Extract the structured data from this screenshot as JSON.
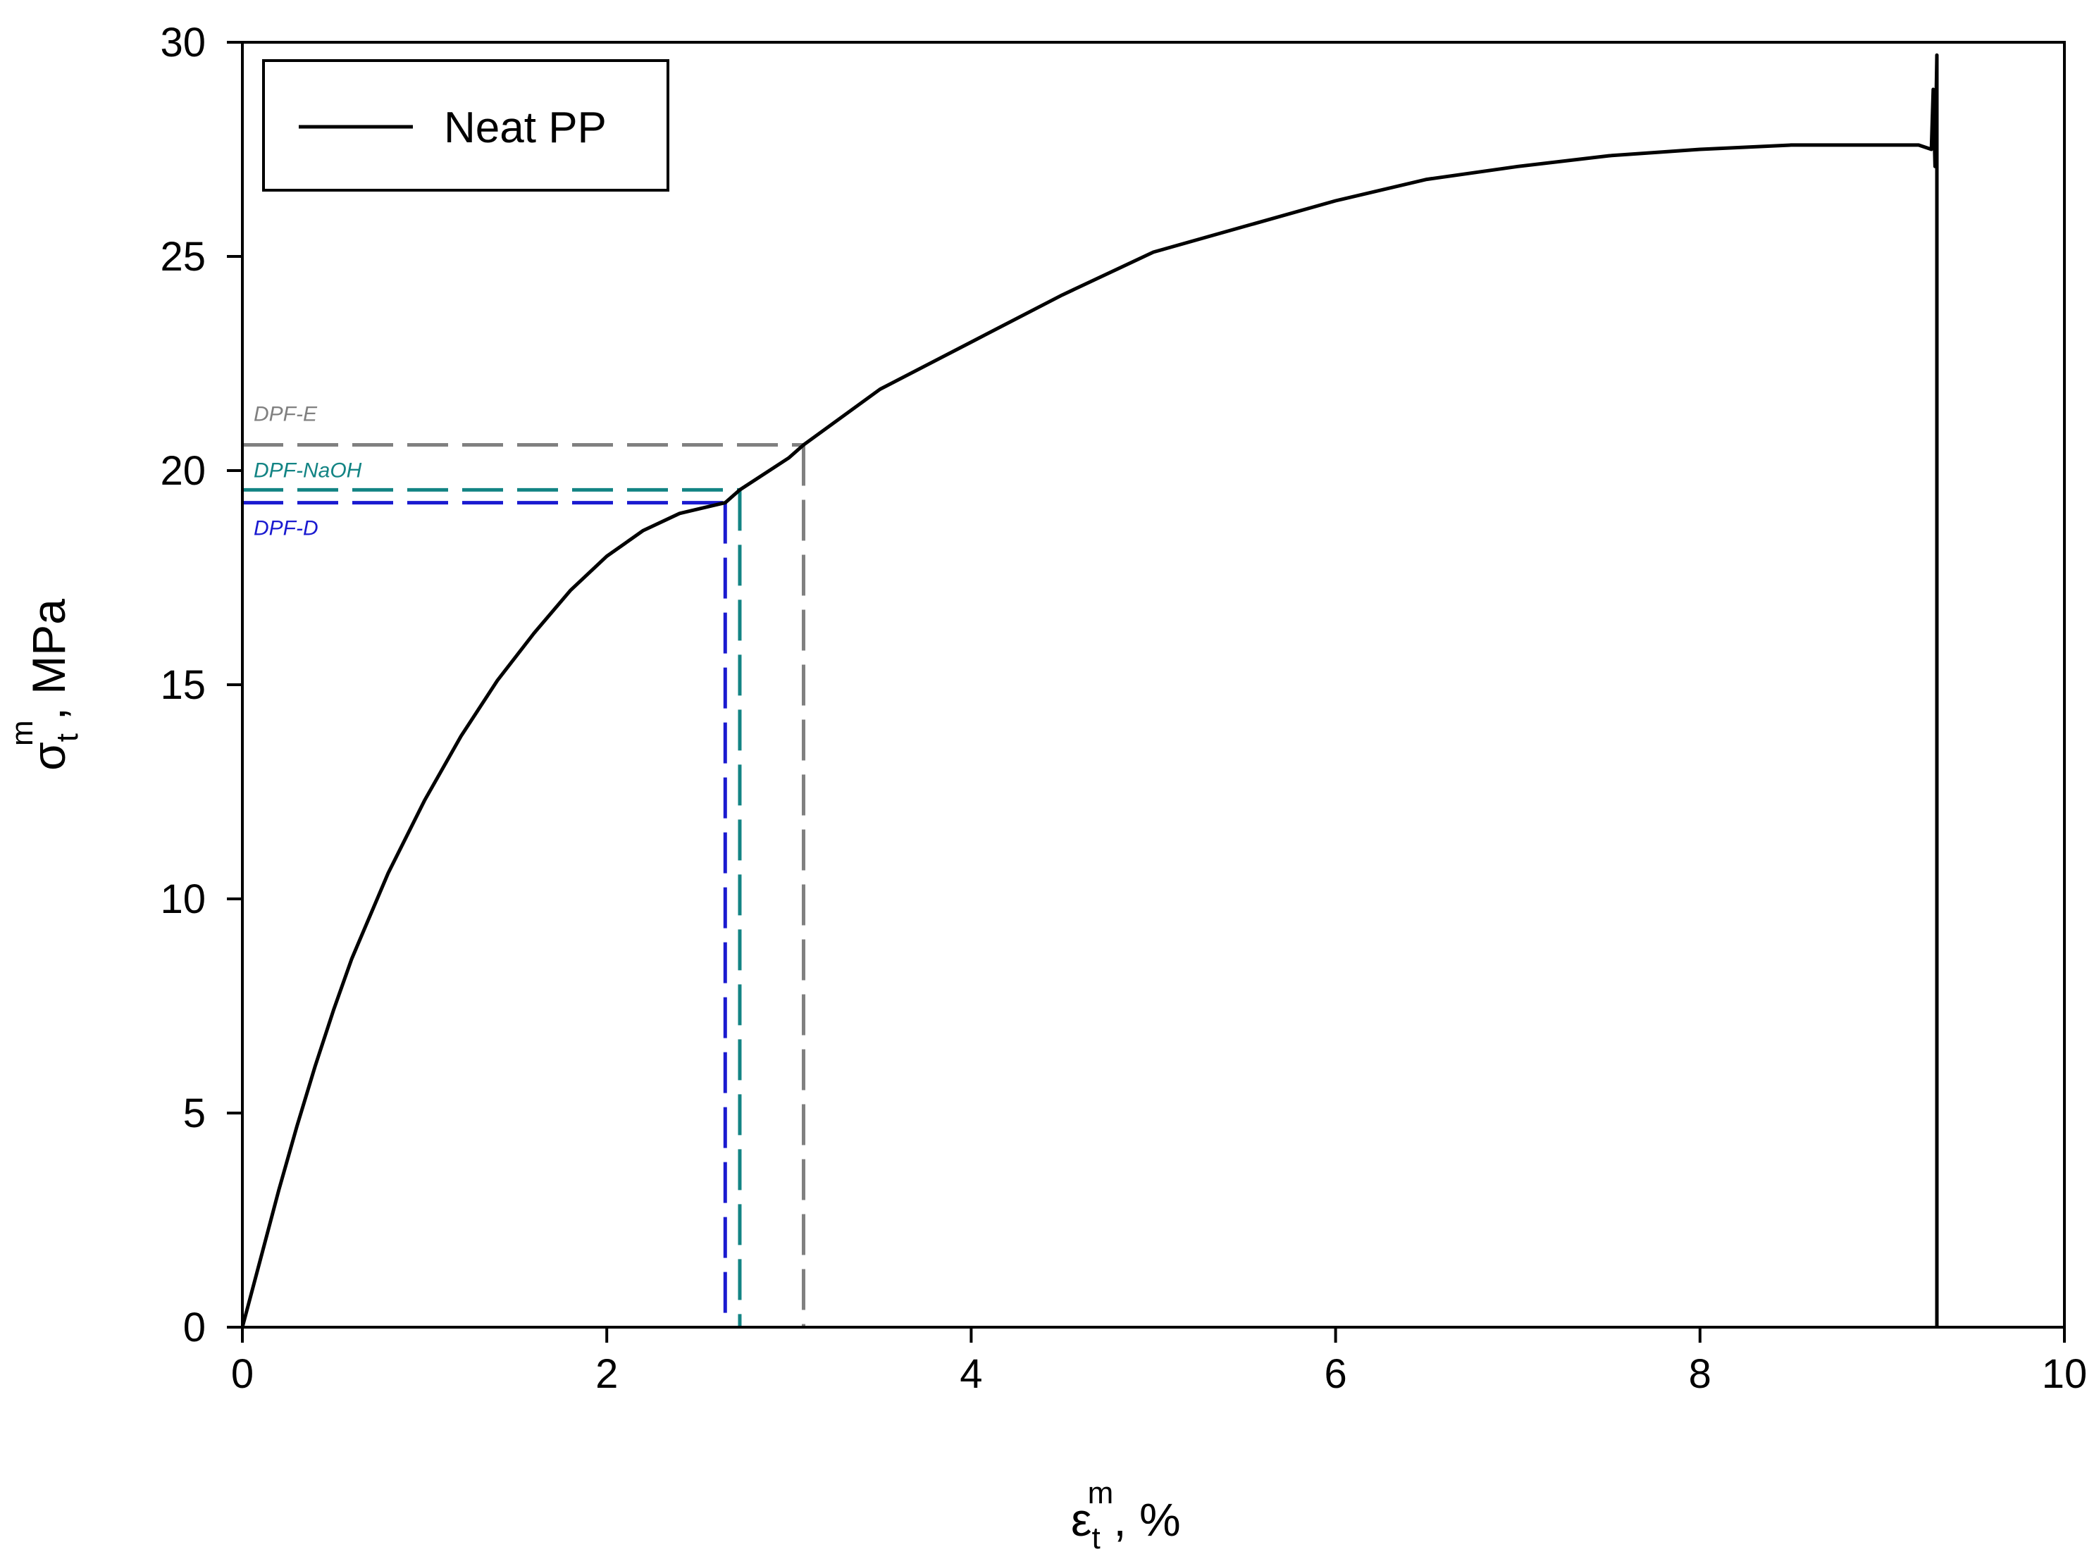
{
  "chart_data": {
    "type": "line",
    "title": "",
    "xlabel": {
      "symbol": "ε",
      "sub": "t",
      "sup": "m",
      "suffix": ", %"
    },
    "ylabel": {
      "symbol": "σ",
      "sub": "t",
      "sup": "m",
      "suffix": ", MPa"
    },
    "xlim": [
      0,
      10
    ],
    "ylim": [
      0,
      30
    ],
    "xticks": [
      0,
      2,
      4,
      6,
      8,
      10
    ],
    "yticks": [
      0,
      5,
      10,
      15,
      20,
      25,
      30
    ],
    "grid": false,
    "legend": {
      "position": "top-left",
      "entries": [
        "Neat PP"
      ]
    },
    "series": [
      {
        "name": "Neat PP",
        "color": "#000000",
        "x": [
          0,
          0.1,
          0.2,
          0.3,
          0.4,
          0.5,
          0.6,
          0.8,
          1.0,
          1.2,
          1.4,
          1.6,
          1.8,
          2.0,
          2.2,
          2.4,
          2.65,
          2.73,
          3.0,
          3.08,
          3.5,
          4.0,
          4.5,
          5.0,
          5.5,
          6.0,
          6.5,
          7.0,
          7.5,
          8.0,
          8.5,
          9.0,
          9.2,
          9.27,
          9.28,
          9.29,
          9.3,
          9.3
        ],
        "y": [
          0,
          1.6,
          3.2,
          4.7,
          6.1,
          7.4,
          8.6,
          10.6,
          12.3,
          13.8,
          15.1,
          16.2,
          17.2,
          18.0,
          18.6,
          19.0,
          19.25,
          19.55,
          20.3,
          20.6,
          21.9,
          23.0,
          24.1,
          25.1,
          25.7,
          26.3,
          26.8,
          27.1,
          27.35,
          27.5,
          27.6,
          27.6,
          27.6,
          27.5,
          28.9,
          27.1,
          29.7,
          0
        ]
      }
    ],
    "reference_lines": [
      {
        "label": "DPF-E",
        "color": "#808080",
        "x": 3.08,
        "y": 20.6
      },
      {
        "label": "DPF-NaOH",
        "color": "#138484",
        "x": 2.73,
        "y": 19.55
      },
      {
        "label": "DPF-D",
        "color": "#1a1ad0",
        "x": 2.65,
        "y": 19.25
      }
    ]
  }
}
